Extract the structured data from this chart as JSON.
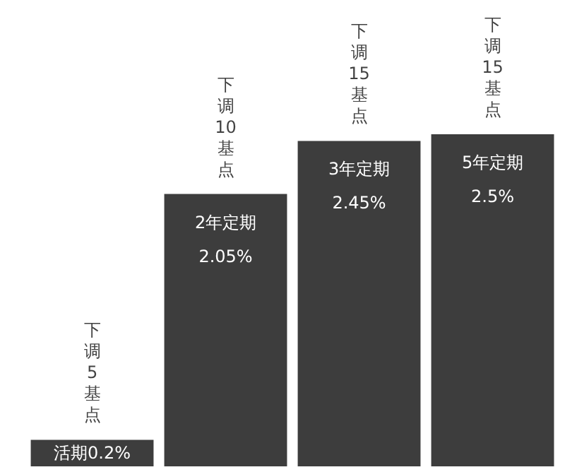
{
  "chart_data": {
    "type": "bar",
    "categories": [
      "活期",
      "2年定期",
      "3年定期",
      "5年定期"
    ],
    "values": [
      0.2,
      2.05,
      2.45,
      2.5
    ],
    "value_labels": [
      "0.2%",
      "2.05%",
      "2.45%",
      "2.5%"
    ],
    "color": "#3d3d3d",
    "annotations": [
      {
        "text": "下调5基点",
        "x": "活期",
        "y": 0.2
      },
      {
        "text": "下调10基点",
        "x": "2年定期",
        "y": 2.05
      },
      {
        "text": "下调15基点",
        "x": "3年定期",
        "y": 2.45
      },
      {
        "text": "下调15基点",
        "x": "5年定期",
        "y": 2.5
      }
    ]
  }
}
